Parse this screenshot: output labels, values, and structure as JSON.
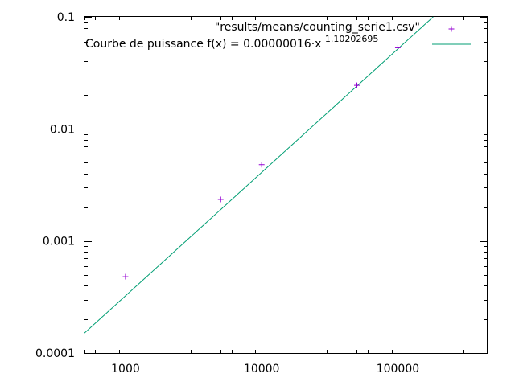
{
  "chart_data": {
    "type": "scatter",
    "title": "",
    "xlabel": "",
    "ylabel": "",
    "x_scale": "log",
    "y_scale": "log",
    "xlim": [
      500,
      450000
    ],
    "ylim": [
      0.0001,
      0.1
    ],
    "grid": false,
    "legend_position": "top-right",
    "x_ticks": [
      {
        "value": 1000,
        "label": "1000"
      },
      {
        "value": 10000,
        "label": "10000"
      },
      {
        "value": 100000,
        "label": "100000"
      }
    ],
    "y_ticks": [
      {
        "value": 0.1,
        "label": "0.1"
      },
      {
        "value": 0.01,
        "label": "0.01"
      },
      {
        "value": 0.001,
        "label": "0.001"
      },
      {
        "value": 0.0001,
        "label": "0.0001"
      }
    ],
    "series": [
      {
        "name": "\"results/means/counting_serie1.csv\"",
        "kind": "points",
        "marker": "+",
        "color": "#9400d3",
        "points": [
          {
            "x": 1000,
            "y": 0.00048
          },
          {
            "x": 5000,
            "y": 0.00235
          },
          {
            "x": 10000,
            "y": 0.0048
          },
          {
            "x": 50000,
            "y": 0.0245
          },
          {
            "x": 100000,
            "y": 0.053
          }
        ]
      },
      {
        "name_prefix": "Courbe de puissance f(x) = 0.00000016·x",
        "name_exponent": "1.10202695",
        "kind": "line",
        "color": "#009e73",
        "coefficient": 1.6e-07,
        "exponent": 1.10202695,
        "x_range": [
          500,
          200000
        ]
      }
    ]
  }
}
